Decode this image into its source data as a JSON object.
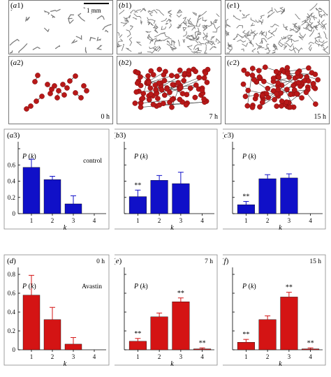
{
  "colors": {
    "blue": "#1010c8",
    "red": "#d41414",
    "node": "#b81818",
    "vessel": "#777777"
  },
  "scale_bar": {
    "label": "1 mm"
  },
  "vessel_panels": [
    {
      "label": "(a1)"
    },
    {
      "label": "(b1)"
    },
    {
      "label": "(e1)"
    }
  ],
  "network_panels": [
    {
      "label": "(a2)",
      "time": "0 h",
      "density": "sparse"
    },
    {
      "label": "(b2)",
      "time": "7 h",
      "density": "dense"
    },
    {
      "label": "(c2)",
      "time": "15 h",
      "density": "dense"
    }
  ],
  "chart_data": [
    {
      "type": "bar",
      "panel_label": "(a3)",
      "ylabel": "P (k)",
      "xlabel": "k",
      "annotation": "control",
      "color": "blue",
      "categories": [
        "1",
        "2",
        "3",
        "4"
      ],
      "values": [
        0.57,
        0.42,
        0.12,
        0.0
      ],
      "errors": [
        0.1,
        0.04,
        0.1,
        0.0
      ],
      "significance": [
        "",
        "",
        "",
        ""
      ],
      "ylim": [
        0,
        0.8
      ],
      "yticks": [
        "0",
        "0.2",
        "0.4",
        "0.6"
      ]
    },
    {
      "type": "bar",
      "panel_label": "(b3)",
      "ylabel": "P (k)",
      "xlabel": "k",
      "annotation": "",
      "color": "blue",
      "categories": [
        "1",
        "2",
        "3",
        "4"
      ],
      "values": [
        0.21,
        0.41,
        0.37,
        0.0
      ],
      "errors": [
        0.08,
        0.06,
        0.14,
        0.0
      ],
      "significance": [
        "**",
        "",
        "",
        ""
      ],
      "ylim": [
        0,
        0.8
      ],
      "yticks": []
    },
    {
      "type": "bar",
      "panel_label": "(c3)",
      "ylabel": "P (k)",
      "xlabel": "k",
      "annotation": "",
      "color": "blue",
      "categories": [
        "1",
        "2",
        "3",
        "4"
      ],
      "values": [
        0.11,
        0.43,
        0.44,
        0.0
      ],
      "errors": [
        0.04,
        0.05,
        0.05,
        0.0
      ],
      "significance": [
        "**",
        "",
        "",
        ""
      ],
      "ylim": [
        0,
        0.8
      ],
      "yticks": []
    },
    {
      "type": "bar",
      "panel_label": "(d)",
      "ylabel": "P (k)",
      "xlabel": "k",
      "annotation": "Avastin",
      "time": "0 h",
      "color": "red",
      "categories": [
        "1",
        "2",
        "3",
        "4"
      ],
      "values": [
        0.58,
        0.32,
        0.06,
        0.0
      ],
      "errors": [
        0.21,
        0.13,
        0.07,
        0.0
      ],
      "significance": [
        "",
        "",
        "",
        ""
      ],
      "ylim": [
        0,
        0.8
      ],
      "yticks": [
        "0",
        "0.2",
        "0.4",
        "0.6",
        "0.8"
      ]
    },
    {
      "type": "bar",
      "panel_label": "(e)",
      "ylabel": "P (k)",
      "xlabel": "k",
      "annotation": "",
      "time": "7 h",
      "color": "red",
      "categories": [
        "1",
        "2",
        "3",
        "4"
      ],
      "values": [
        0.09,
        0.35,
        0.51,
        0.01
      ],
      "errors": [
        0.03,
        0.04,
        0.04,
        0.01
      ],
      "significance": [
        "**",
        "",
        "**",
        "**"
      ],
      "ylim": [
        0,
        0.8
      ],
      "yticks": []
    },
    {
      "type": "bar",
      "panel_label": "(f)",
      "ylabel": "P (k)",
      "xlabel": "k",
      "annotation": "",
      "time": "15 h",
      "color": "red",
      "categories": [
        "1",
        "2",
        "3",
        "4"
      ],
      "values": [
        0.08,
        0.32,
        0.56,
        0.01
      ],
      "errors": [
        0.03,
        0.04,
        0.05,
        0.01
      ],
      "significance": [
        "**",
        "",
        "**",
        "**"
      ],
      "ylim": [
        0,
        0.8
      ],
      "yticks": []
    }
  ]
}
